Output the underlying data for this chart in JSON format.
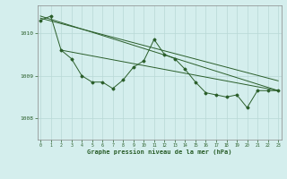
{
  "title": "Graphe pression niveau de la mer (hPa)",
  "bg_color": "#d4eeed",
  "grid_color": "#b8d8d5",
  "line_color": "#2a5e2a",
  "xlim": [
    -0.3,
    23.3
  ],
  "ylim": [
    1007.5,
    1010.65
  ],
  "yticks": [
    1008,
    1009,
    1010
  ],
  "xticks": [
    0,
    1,
    2,
    3,
    4,
    5,
    6,
    7,
    8,
    9,
    10,
    11,
    12,
    13,
    14,
    15,
    16,
    17,
    18,
    19,
    20,
    21,
    22,
    23
  ],
  "main_y": [
    1010.3,
    1010.4,
    1009.6,
    1009.4,
    1009.0,
    1008.85,
    1008.85,
    1008.7,
    1008.9,
    1009.2,
    1009.35,
    1009.85,
    1009.5,
    1009.4,
    1009.15,
    1008.85,
    1008.6,
    1008.55,
    1008.5,
    1008.55,
    1008.25,
    1008.65,
    1008.65,
    1008.65
  ],
  "trend1_x": [
    0,
    23
  ],
  "trend1_y": [
    1010.4,
    1008.65
  ],
  "trend2_x": [
    0,
    23
  ],
  "trend2_y": [
    1010.35,
    1008.88
  ],
  "trend3_x": [
    2,
    23
  ],
  "trend3_y": [
    1009.6,
    1008.65
  ]
}
